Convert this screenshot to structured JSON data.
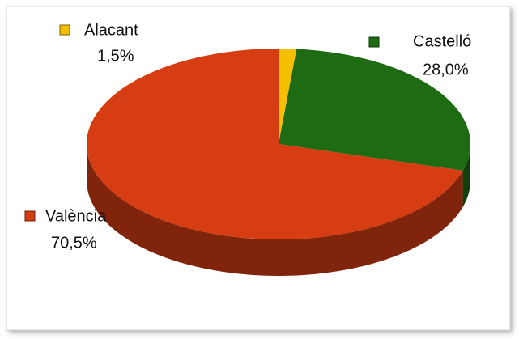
{
  "chart_data": {
    "type": "pie",
    "categories": [
      "Alacant",
      "Castelló",
      "València"
    ],
    "values": [
      1.5,
      28.0,
      70.5
    ],
    "value_labels": [
      "1,5%",
      "28,0%",
      "70,5%"
    ],
    "colors": [
      "#f5c000",
      "#1e6b14",
      "#d63d12"
    ]
  }
}
